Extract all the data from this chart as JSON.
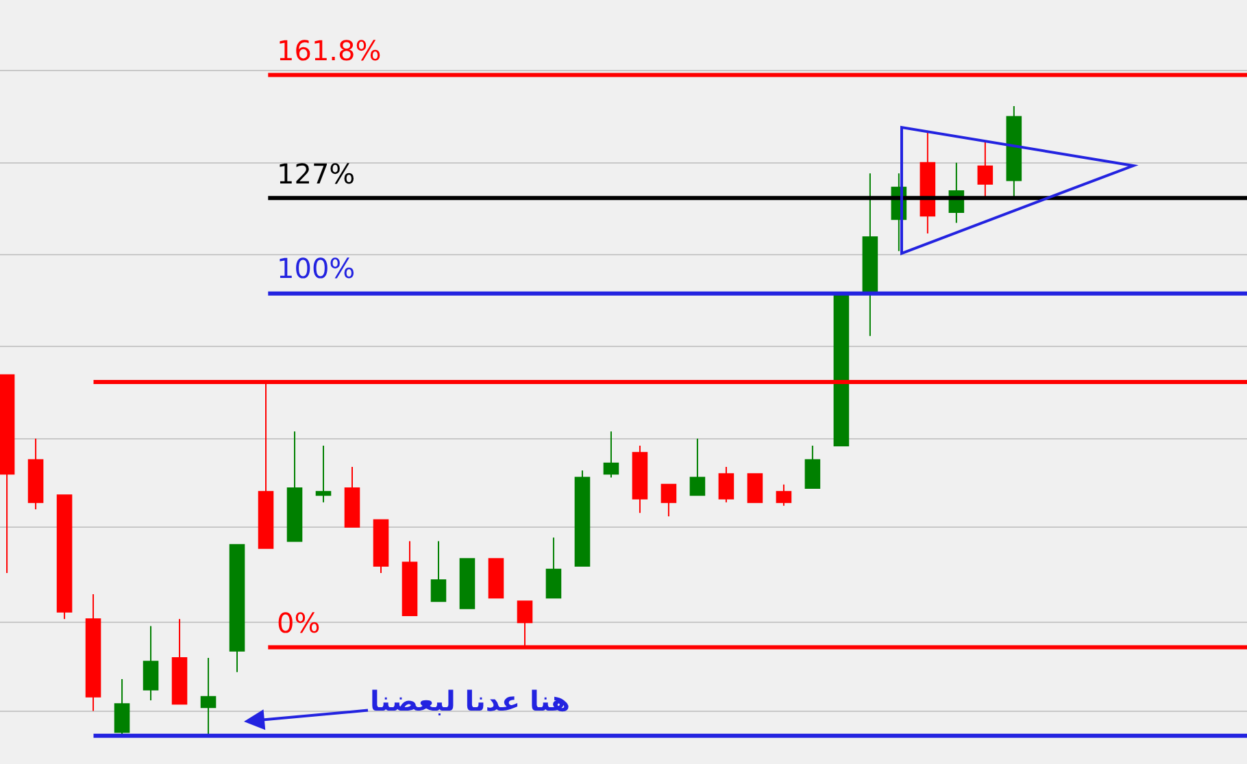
{
  "chart_data": {
    "type": "candlestick",
    "grid": "y",
    "ylim": [
      -33,
      183
    ],
    "yticks": [
      {
        "value": -18,
        "label": null
      },
      {
        "value": 7,
        "label": null
      },
      {
        "value": 34,
        "label": null
      },
      {
        "value": 59,
        "label": null
      },
      {
        "value": 85,
        "label": null
      },
      {
        "value": 111,
        "label": null
      },
      {
        "value": 137,
        "label": null
      },
      {
        "value": 163,
        "label": null
      }
    ],
    "categories": [
      null,
      null,
      null,
      null,
      null,
      null,
      null,
      null,
      null,
      null,
      null,
      null,
      null,
      null,
      null,
      null,
      null,
      null,
      null,
      null,
      null,
      null,
      null,
      null,
      null,
      null,
      null,
      null,
      null,
      null,
      null,
      null,
      null,
      null,
      null,
      null
    ],
    "ohlc": [
      [
        77,
        77,
        21,
        49
      ],
      [
        53,
        59,
        39,
        41
      ],
      [
        43,
        43,
        8,
        10
      ],
      [
        8,
        15,
        -18,
        -14
      ],
      [
        -24,
        -9,
        -25,
        -16
      ],
      [
        -12,
        6,
        -15,
        -4
      ],
      [
        -3,
        8,
        -16,
        -16
      ],
      [
        -17,
        -3,
        -25,
        -14
      ],
      [
        -1,
        29,
        -7,
        29
      ],
      [
        44,
        75,
        28,
        28
      ],
      [
        30,
        61,
        30,
        45
      ],
      [
        43,
        57,
        41,
        44
      ],
      [
        45,
        51,
        34,
        34
      ],
      [
        36,
        36,
        21,
        23
      ],
      [
        24,
        30,
        9,
        9
      ],
      [
        13,
        30,
        13,
        19
      ],
      [
        11,
        25,
        11,
        25
      ],
      [
        25,
        25,
        14,
        14
      ],
      [
        13,
        13,
        0,
        7
      ],
      [
        14,
        31,
        14,
        22
      ],
      [
        23,
        50,
        23,
        48
      ],
      [
        49,
        61,
        48,
        52
      ],
      [
        55,
        57,
        38,
        42
      ],
      [
        46,
        46,
        37,
        41
      ],
      [
        43,
        59,
        43,
        48
      ],
      [
        49,
        51,
        41,
        42
      ],
      [
        49,
        49,
        41,
        41
      ],
      [
        44,
        46,
        40,
        41
      ],
      [
        45,
        57,
        45,
        53
      ],
      [
        57,
        100,
        57,
        100
      ],
      [
        100,
        134,
        88,
        116
      ],
      [
        121,
        134,
        112,
        130
      ],
      [
        137,
        146,
        117,
        122
      ],
      [
        123,
        137,
        120,
        129
      ],
      [
        136,
        143,
        127,
        131
      ],
      [
        132,
        153,
        127,
        150
      ]
    ],
    "colors": [
      "#ff0000",
      "#ff0000",
      "#ff0000",
      "#ff0000",
      "#008000",
      "#008000",
      "#ff0000",
      "#008000",
      "#008000",
      "#ff0000",
      "#008000",
      "#008000",
      "#ff0000",
      "#ff0000",
      "#ff0000",
      "#008000",
      "#008000",
      "#ff0000",
      "#ff0000",
      "#008000",
      "#008000",
      "#008000",
      "#ff0000",
      "#ff0000",
      "#008000",
      "#ff0000",
      "#ff0000",
      "#ff0000",
      "#008000",
      "#008000",
      "#008000",
      "#008000",
      "#ff0000",
      "#008000",
      "#ff0000",
      "#008000"
    ],
    "ref_lines": [
      {
        "axis": "y",
        "value": 161.8,
        "label": "161.8%",
        "color": "#ff0000"
      },
      {
        "axis": "y",
        "value": 127,
        "label": "127%",
        "color": "#000000"
      },
      {
        "axis": "y",
        "value": 100,
        "label": "100%",
        "color": "#2323e0"
      },
      {
        "axis": "y",
        "value": 75,
        "label": null,
        "color": "#ff0000"
      },
      {
        "axis": "y",
        "value": 0,
        "label": "0%",
        "color": "#ff0000"
      },
      {
        "axis": "y",
        "value": -25,
        "label": null,
        "color": "#2323e0"
      }
    ],
    "annotations": [
      "هنا عدنا لبعضنا"
    ]
  }
}
